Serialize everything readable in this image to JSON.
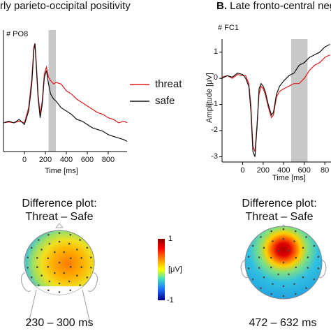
{
  "panel_a": {
    "title": "rly parieto-occipital positivity",
    "channel": "# PO8",
    "xlabel": "Time  [ms]",
    "xticks": [
      "0",
      "200",
      "400",
      "600",
      "800"
    ]
  },
  "panel_b": {
    "title_bold": "B.",
    "title_rest": " Late fronto-central neg",
    "channel": "# FC1",
    "xlabel": "Time  [ms]",
    "ylabel": "Amplitude [μV]",
    "xticks": [
      "0",
      "200",
      "400",
      "600",
      "80"
    ],
    "yticks": [
      "1",
      "0",
      "-1",
      "-2",
      "-3"
    ]
  },
  "legend": {
    "threat_label": "threat",
    "safe_label": "safe"
  },
  "topo_a": {
    "title_line1": "Difference plot:",
    "title_line2": "Threat – Safe",
    "range": "230 – 300 ms"
  },
  "topo_b": {
    "title_line1": "Difference plot:",
    "title_line2": "Threat – Safe",
    "range": "472 – 632 ms"
  },
  "colorbar": {
    "max_label": "1",
    "unit_label": "[μV]",
    "min_label": "-1"
  },
  "colors": {
    "threat": "#e31a1c",
    "safe": "#111111",
    "highlight": "#c8c8c8"
  },
  "chart_data": [
    {
      "type": "line",
      "title": "rly parieto-occipital positivity",
      "channel": "# PO8",
      "xlabel": "Time  [ms]",
      "xlim": [
        -200,
        980
      ],
      "highlight_window": [
        230,
        300
      ],
      "series": [
        {
          "name": "threat",
          "x": [
            -200,
            -150,
            -100,
            -50,
            0,
            40,
            70,
            90,
            100,
            110,
            130,
            150,
            170,
            190,
            210,
            230,
            250,
            280,
            300,
            350,
            400,
            450,
            500,
            550,
            600,
            650,
            700,
            750,
            800,
            850,
            900,
            950,
            980
          ],
          "y": [
            -0.1,
            -0.05,
            -0.1,
            0.0,
            -0.1,
            0.8,
            2.5,
            4.4,
            4.6,
            3.8,
            1.6,
            0.4,
            1.2,
            2.8,
            3.2,
            2.6,
            2.4,
            2.2,
            2.3,
            2.2,
            1.8,
            1.6,
            1.3,
            1.1,
            0.9,
            0.7,
            0.5,
            0.4,
            0.2,
            0.1,
            -0.1,
            0.0,
            -0.1
          ]
        },
        {
          "name": "safe",
          "x": [
            -200,
            -150,
            -100,
            -50,
            0,
            40,
            70,
            90,
            100,
            110,
            130,
            150,
            170,
            190,
            210,
            230,
            250,
            280,
            300,
            350,
            400,
            450,
            500,
            550,
            600,
            650,
            700,
            750,
            800,
            850,
            900,
            950,
            980
          ],
          "y": [
            -0.1,
            0.0,
            -0.1,
            0.1,
            -0.2,
            0.6,
            2.2,
            4.2,
            4.6,
            3.6,
            1.4,
            0.2,
            1.0,
            2.6,
            3.0,
            2.2,
            1.6,
            1.3,
            1.2,
            0.8,
            0.6,
            0.4,
            0.1,
            0.0,
            -0.2,
            -0.4,
            -0.5,
            -0.6,
            -0.8,
            -0.9,
            -1.0,
            -1.1,
            -1.2
          ]
        }
      ]
    },
    {
      "type": "line",
      "title": "B. Late fronto-central neg",
      "channel": "# FC1",
      "xlabel": "Time  [ms]",
      "ylabel": "Amplitude [μV]",
      "xlim": [
        -200,
        860
      ],
      "ylim": [
        -3.2,
        1.5
      ],
      "highlight_window": [
        472,
        632
      ],
      "series": [
        {
          "name": "threat",
          "x": [
            -200,
            -150,
            -100,
            -50,
            0,
            30,
            60,
            80,
            100,
            120,
            140,
            160,
            180,
            200,
            220,
            250,
            280,
            300,
            330,
            360,
            400,
            450,
            500,
            550,
            600,
            650,
            700,
            750,
            800,
            850
          ],
          "y": [
            0.05,
            0.1,
            0.0,
            0.15,
            0.1,
            0.1,
            -0.2,
            -1.0,
            -2.6,
            -2.8,
            -1.8,
            -0.6,
            -0.3,
            -0.4,
            -0.6,
            -1.1,
            -1.5,
            -1.4,
            -0.7,
            -0.5,
            -0.4,
            -0.3,
            -0.2,
            -0.2,
            0.0,
            0.3,
            0.5,
            0.6,
            0.8,
            0.9
          ]
        },
        {
          "name": "safe",
          "x": [
            -200,
            -150,
            -100,
            -50,
            0,
            30,
            60,
            80,
            100,
            120,
            140,
            160,
            180,
            200,
            220,
            250,
            280,
            300,
            330,
            360,
            400,
            450,
            500,
            550,
            600,
            650,
            700,
            750,
            800,
            850
          ],
          "y": [
            0.0,
            0.1,
            0.05,
            0.2,
            0.15,
            0.0,
            -0.3,
            -1.2,
            -2.8,
            -3.0,
            -1.9,
            -0.4,
            -0.2,
            -0.3,
            -0.5,
            -1.0,
            -1.4,
            -1.3,
            -0.6,
            -0.3,
            -0.1,
            0.1,
            0.2,
            0.5,
            0.6,
            0.8,
            0.9,
            1.0,
            1.2,
            1.3
          ]
        }
      ]
    }
  ]
}
